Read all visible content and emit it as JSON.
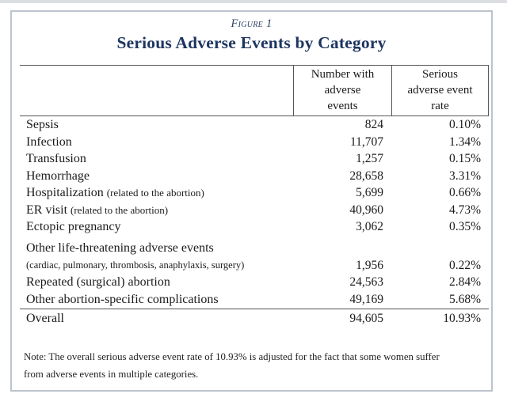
{
  "figure": {
    "label": "Figure 1",
    "title": "Serious Adverse Events by Category"
  },
  "table": {
    "header": {
      "col_number": {
        "lines": [
          "Number with",
          "adverse",
          "events"
        ]
      },
      "col_rate": {
        "lines": [
          "Serious",
          "adverse event",
          "rate"
        ]
      }
    },
    "rows": [
      {
        "category": "Sepsis",
        "number": "824",
        "rate": "0.10%"
      },
      {
        "category": "Infection",
        "number": "11,707",
        "rate": "1.34%"
      },
      {
        "category": "Transfusion",
        "number": "1,257",
        "rate": "0.15%"
      },
      {
        "category": "Hemorrhage",
        "number": "28,658",
        "rate": "3.31%"
      },
      {
        "category": "Hospitalization",
        "qualifier": "(related to the abortion)",
        "number": "5,699",
        "rate": "0.66%"
      },
      {
        "category": "ER visit",
        "qualifier": "(related to the abortion)",
        "number": "40,960",
        "rate": "4.73%"
      },
      {
        "category": "Ectopic pregnancy",
        "number": "3,062",
        "rate": "0.35%"
      },
      {
        "category": "Other life-threatening adverse events",
        "qualifier": "(cardiac, pulmonary, thrombosis, anaphylaxis, surgery)",
        "number": "1,956",
        "rate": "0.22%"
      },
      {
        "category": "Repeated (surgical) abortion",
        "number": "24,563",
        "rate": "2.84%"
      },
      {
        "category": "Other abortion-specific complications",
        "number": "49,169",
        "rate": "5.68%"
      }
    ],
    "overall": {
      "category": "Overall",
      "number": "94,605",
      "rate": "10.93%"
    }
  },
  "note": {
    "lines": [
      "Note: The overall serious adverse event rate of 10.93% is adjusted for the fact that some women suffer",
      "from adverse events in multiple categories."
    ]
  },
  "colors": {
    "title_navy": "#1d3560",
    "figure_border": "#bcc3cd",
    "table_line": "#555555",
    "body_text": "#1b1b1b"
  }
}
